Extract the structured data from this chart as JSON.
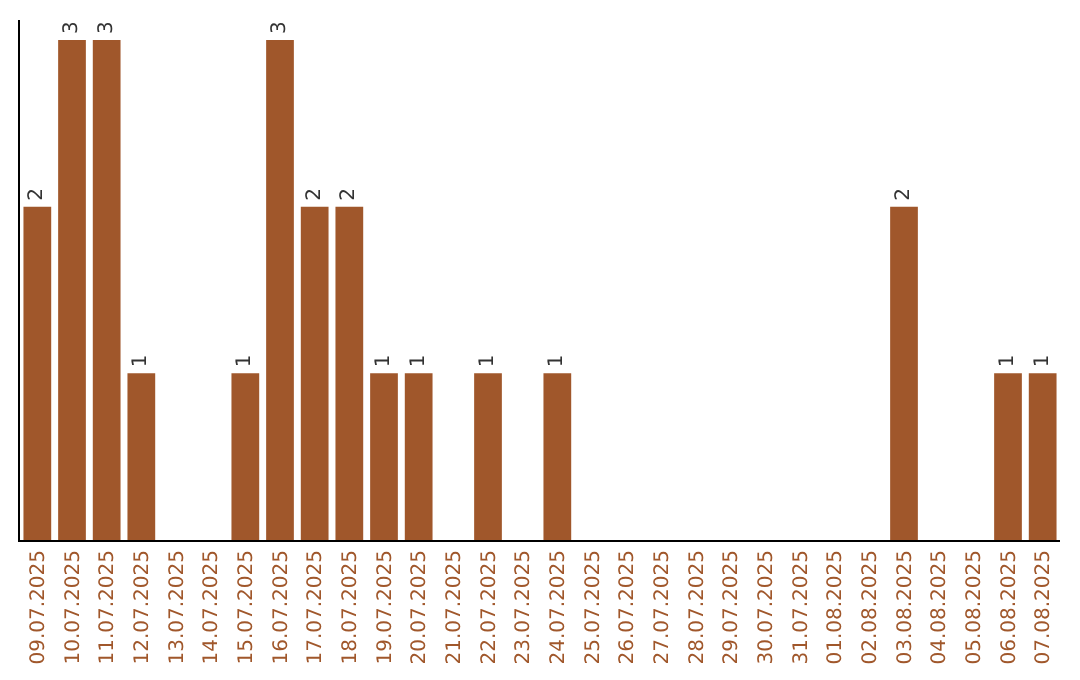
{
  "chart_data": {
    "type": "bar",
    "categories": [
      "09.07.2025",
      "10.07.2025",
      "11.07.2025",
      "12.07.2025",
      "13.07.2025",
      "14.07.2025",
      "15.07.2025",
      "16.07.2025",
      "17.07.2025",
      "18.07.2025",
      "19.07.2025",
      "20.07.2025",
      "21.07.2025",
      "22.07.2025",
      "23.07.2025",
      "24.07.2025",
      "25.07.2025",
      "26.07.2025",
      "27.07.2025",
      "28.07.2025",
      "29.07.2025",
      "30.07.2025",
      "31.07.2025",
      "01.08.2025",
      "02.08.2025",
      "03.08.2025",
      "04.08.2025",
      "05.08.2025",
      "06.08.2025",
      "07.08.2025"
    ],
    "values": [
      2,
      3,
      3,
      1,
      0,
      0,
      1,
      3,
      2,
      2,
      1,
      1,
      0,
      1,
      0,
      1,
      0,
      0,
      0,
      0,
      0,
      0,
      0,
      0,
      0,
      2,
      0,
      0,
      1,
      1
    ],
    "value_labels": [
      "2",
      "3",
      "3",
      "1",
      null,
      null,
      "1",
      "3",
      "2",
      "2",
      "1",
      "1",
      null,
      "1",
      null,
      "1",
      null,
      null,
      null,
      null,
      null,
      null,
      null,
      null,
      null,
      "2",
      null,
      null,
      "1",
      "1"
    ],
    "color": "#a0572b",
    "grid": false,
    "tick_labels": "x"
  }
}
